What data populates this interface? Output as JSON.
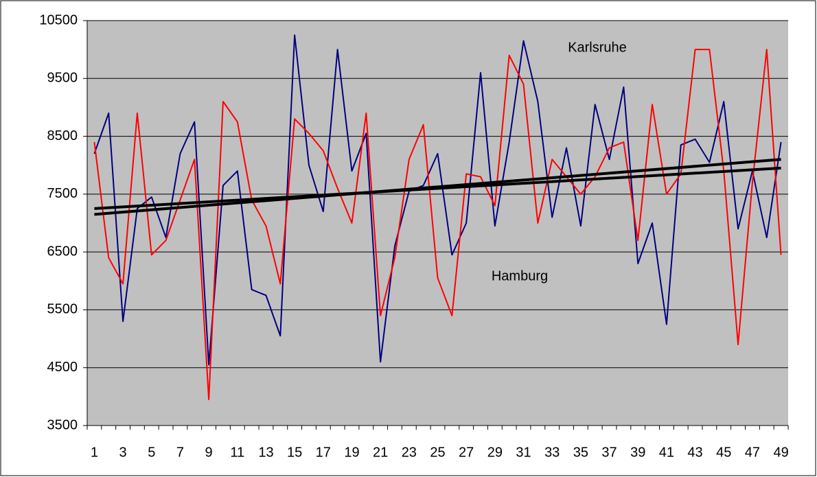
{
  "chart_data": {
    "type": "line",
    "categories": [
      1,
      null,
      3,
      null,
      5,
      null,
      7,
      null,
      9,
      null,
      11,
      null,
      13,
      null,
      15,
      null,
      17,
      null,
      19,
      null,
      21,
      null,
      23,
      null,
      25,
      null,
      27,
      null,
      29,
      null,
      31,
      null,
      33,
      null,
      35,
      null,
      37,
      null,
      39,
      null,
      41,
      null,
      43,
      null,
      45,
      null,
      47,
      null,
      49
    ],
    "series": [
      {
        "color": "#000080",
        "values": [
          8200,
          8900,
          5300,
          7250,
          7450,
          6750,
          8200,
          8750,
          4550,
          7650,
          7900,
          5850,
          5750,
          5050,
          10250,
          8000,
          7200,
          10000,
          7900,
          8550,
          4600,
          6600,
          7550,
          7650,
          8200,
          6450,
          7000,
          9600,
          6950,
          8400,
          10150,
          9100,
          7100,
          8300,
          6950,
          9050,
          8100,
          9350,
          6300,
          7000,
          5250,
          8350,
          8450,
          8050,
          9100,
          6900,
          7900,
          6750,
          8400
        ]
      },
      {
        "color": "#ff0000",
        "values": [
          8400,
          6400,
          5950,
          8900,
          6450,
          6700,
          7400,
          8100,
          3950,
          9100,
          8750,
          7400,
          6950,
          5950,
          8800,
          8550,
          8250,
          7600,
          7000,
          8900,
          5400,
          6400,
          8100,
          8700,
          6050,
          5400,
          7850,
          7800,
          7300,
          9900,
          9400,
          7000,
          8100,
          7800,
          7500,
          7800,
          8300,
          8400,
          6700,
          9050,
          7500,
          7850,
          10000,
          10000,
          7900,
          4900,
          7700,
          10000,
          6450
        ]
      }
    ],
    "trendlines": [
      {
        "color": "#000000",
        "values": [
          7150,
          8100
        ]
      },
      {
        "color": "#000000",
        "values": [
          7250,
          7950
        ]
      }
    ],
    "annotations": [
      {
        "text": "Karlsruhe"
      },
      {
        "text": "Hamburg"
      }
    ],
    "ylim": [
      3500,
      10500
    ],
    "yticks": [
      3500,
      4500,
      5500,
      6500,
      7500,
      8500,
      9500,
      10500
    ],
    "grid": true,
    "background": "#c0c0c0"
  }
}
